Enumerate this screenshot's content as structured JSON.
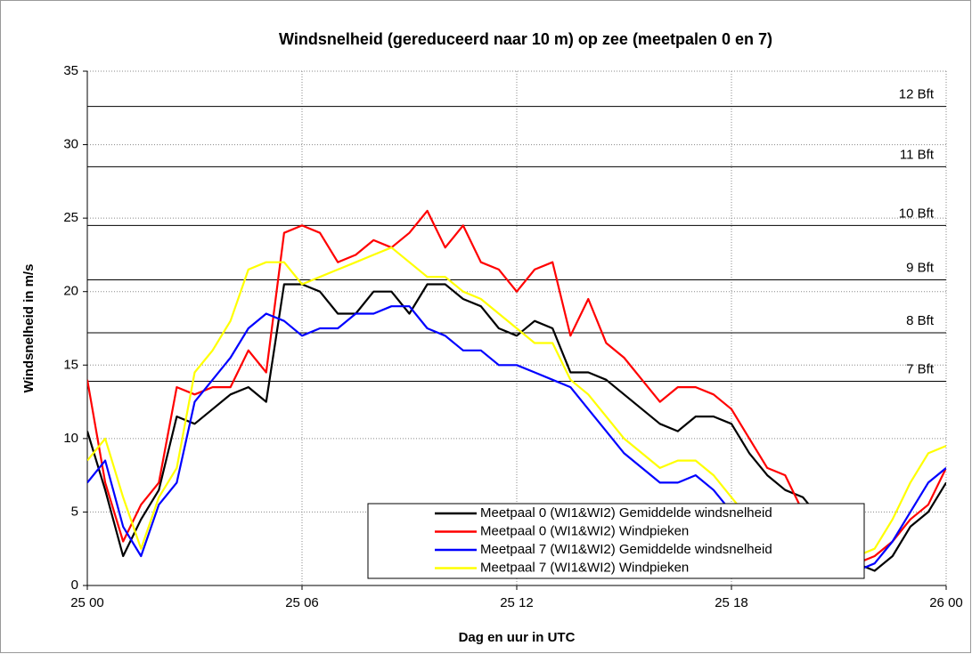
{
  "chart_data": {
    "type": "line",
    "title": "Windsnelheid (gereduceerd naar 10 m) op zee (meetpalen 0 en 7)",
    "xlabel": "Dag en uur in UTC",
    "ylabel": "Windsnelheid in m/s",
    "x": [
      0,
      0.5,
      1,
      1.5,
      2,
      2.5,
      3,
      3.5,
      4,
      4.5,
      5,
      5.5,
      6,
      6.5,
      7,
      7.5,
      8,
      8.5,
      9,
      9.5,
      10,
      10.5,
      11,
      11.5,
      12,
      12.5,
      13,
      13.5,
      14,
      14.5,
      15,
      15.5,
      16,
      16.5,
      17,
      17.5,
      18,
      18.5,
      19,
      19.5,
      20,
      20.5,
      21,
      21.5,
      22,
      22.5,
      23,
      23.5,
      24
    ],
    "xlim": [
      0,
      24
    ],
    "xticks": [
      {
        "value": 0,
        "label": "25 00"
      },
      {
        "value": 6,
        "label": "25 06"
      },
      {
        "value": 12,
        "label": "25 12"
      },
      {
        "value": 18,
        "label": "25 18"
      },
      {
        "value": 24,
        "label": "26 00"
      }
    ],
    "ylim": [
      0,
      35
    ],
    "yticks": [
      0,
      5,
      10,
      15,
      20,
      25,
      30,
      35
    ],
    "grid": true,
    "legend": "lower right",
    "annotations": [
      {
        "text": "12 Bft",
        "value": 32.6
      },
      {
        "text": "11 Bft",
        "value": 28.5
      },
      {
        "text": "10 Bft",
        "value": 24.5
      },
      {
        "text": "9 Bft",
        "value": 20.8
      },
      {
        "text": "8 Bft",
        "value": 17.2
      },
      {
        "text": "7 Bft",
        "value": 13.9
      }
    ],
    "series": [
      {
        "name": "Meetpaal 0 (WI1&WI2) Gemiddelde windsnelheid",
        "color": "#000000",
        "values": [
          10.5,
          6.5,
          2,
          4.5,
          6.5,
          11.5,
          11,
          12,
          13,
          13.5,
          12.5,
          20.5,
          20.5,
          20,
          18.5,
          18.5,
          20,
          20,
          18.5,
          20.5,
          20.5,
          19.5,
          19,
          17.5,
          17,
          18,
          17.5,
          14.5,
          14.5,
          14,
          13,
          12,
          11,
          10.5,
          11.5,
          11.5,
          11,
          9,
          7.5,
          6.5,
          6,
          4.5,
          3,
          1.5,
          1,
          2,
          4,
          5,
          7
        ]
      },
      {
        "name": "Meetpaal 0 (WI1&WI2) Windpieken",
        "color": "#ff0000",
        "values": [
          14,
          7,
          3,
          5.5,
          7,
          13.5,
          13,
          13.5,
          13.5,
          16,
          14.5,
          24,
          24.5,
          24,
          22,
          22.5,
          23.5,
          23,
          24,
          25.5,
          23,
          24.5,
          22,
          21.5,
          20,
          21.5,
          22,
          17,
          19.5,
          16.5,
          15.5,
          14,
          12.5,
          13.5,
          13.5,
          13,
          12,
          10,
          8,
          7.5,
          5,
          3.5,
          2,
          1.5,
          2,
          3,
          4.5,
          5.5,
          8
        ]
      },
      {
        "name": "Meetpaal 7 (WI1&WI2) Gemiddelde windsnelheid",
        "color": "#0000ff",
        "values": [
          7,
          8.5,
          4,
          2,
          5.5,
          7,
          12.5,
          14,
          15.5,
          17.5,
          18.5,
          18,
          17,
          17.5,
          17.5,
          18.5,
          18.5,
          19,
          19,
          17.5,
          17,
          16,
          16,
          15,
          15,
          14.5,
          14,
          13.5,
          12,
          10.5,
          9,
          8,
          7,
          7,
          7.5,
          6.5,
          5,
          3.5,
          2,
          1.5,
          1,
          1,
          1,
          1,
          1.5,
          3,
          5,
          7,
          8
        ]
      },
      {
        "name": "Meetpaal 7 (WI1&WI2) Windpieken",
        "color": "#ffff00",
        "values": [
          8.5,
          10,
          6,
          2.5,
          6,
          8,
          14.5,
          16,
          18,
          21.5,
          22,
          22,
          20.5,
          21,
          21.5,
          22,
          22.5,
          23,
          22,
          21,
          21,
          20,
          19.5,
          18.5,
          17.5,
          16.5,
          16.5,
          14,
          13,
          11.5,
          10,
          9,
          8,
          8.5,
          8.5,
          7.5,
          6,
          4.5,
          3,
          2,
          1.5,
          1.5,
          1.5,
          2,
          2.5,
          4.5,
          7,
          9,
          9.5
        ]
      }
    ]
  }
}
